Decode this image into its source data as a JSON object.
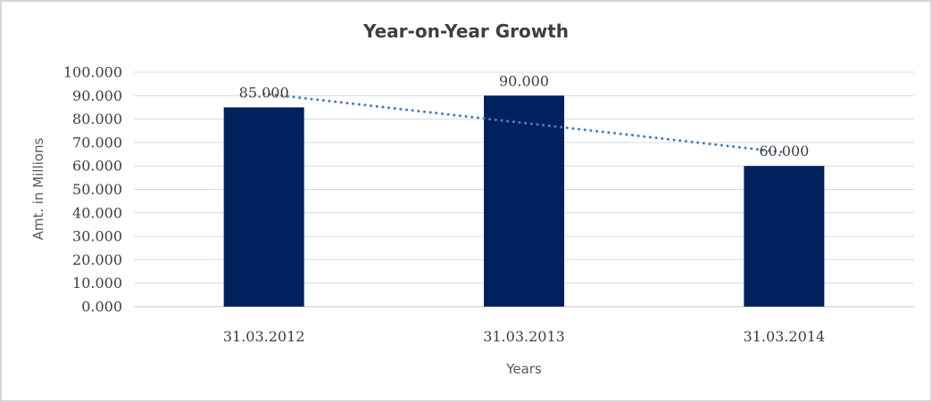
{
  "chart_data": {
    "type": "bar",
    "title": "Year-on-Year Growth",
    "xlabel": "Years",
    "ylabel": "Amt. in Millions",
    "categories": [
      "31.03.2012",
      "31.03.2013",
      "31.03.2014"
    ],
    "values": [
      85000,
      90000,
      60000
    ],
    "value_labels": [
      "85.000",
      "90.000",
      "60.000"
    ],
    "y_ticks": [
      0,
      10000,
      20000,
      30000,
      40000,
      50000,
      60000,
      70000,
      80000,
      90000,
      100000
    ],
    "y_tick_labels": [
      "0.000",
      "10.000",
      "20.000",
      "30.000",
      "40.000",
      "50.000",
      "60.000",
      "70.000",
      "80.000",
      "90.000",
      "100.000"
    ],
    "ylim": [
      0,
      100000
    ],
    "grid": "horizontal",
    "legend": "none",
    "bar_color": "#01205e",
    "gridline_color": "#d9d9d9",
    "axis_line_color": "#c6c6c6",
    "tick_label_color": "#3f3f3f",
    "axis_title_color": "#595959",
    "title_color": "#3f3f3f",
    "trendline": {
      "type": "linear",
      "style": "dotted",
      "color": "#4a7ebc",
      "endpoint_values": [
        90833,
        65833
      ]
    }
  },
  "page": {
    "background": "#ffffff",
    "border_color": "#d5d5d5"
  }
}
